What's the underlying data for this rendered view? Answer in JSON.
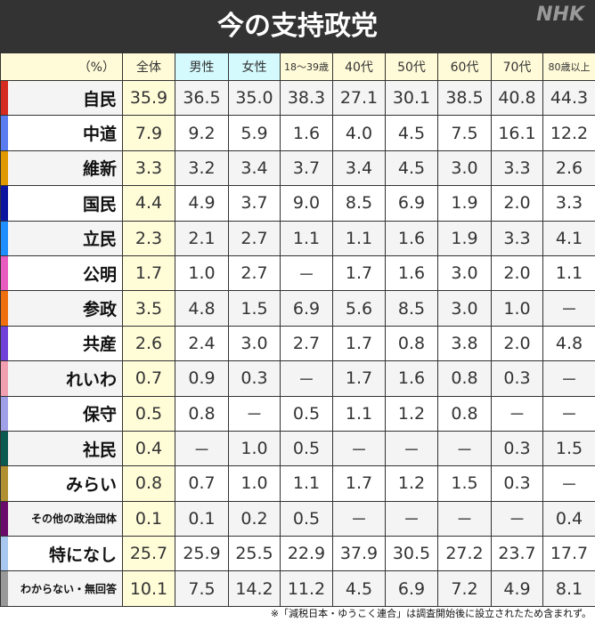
{
  "title": "今の支持政党",
  "logo": "NHK",
  "unit": "（%）",
  "columns": [
    "全体",
    "男性",
    "女性",
    "18〜39歳",
    "40代",
    "50代",
    "60代",
    "70代",
    "80歳以上"
  ],
  "rows": [
    {
      "party": "自民",
      "color": "#d42a20",
      "values": [
        "35.9",
        "36.5",
        "35.0",
        "38.3",
        "27.1",
        "30.1",
        "38.5",
        "40.8",
        "44.3"
      ]
    },
    {
      "party": "中道",
      "color": "#5a7cf0",
      "values": [
        "7.9",
        "9.2",
        "5.9",
        "1.6",
        "4.0",
        "4.5",
        "7.5",
        "16.1",
        "12.2"
      ]
    },
    {
      "party": "維新",
      "color": "#e09a00",
      "values": [
        "3.3",
        "3.2",
        "3.4",
        "3.7",
        "3.4",
        "4.5",
        "3.0",
        "3.3",
        "2.6"
      ]
    },
    {
      "party": "国民",
      "color": "#0a14a0",
      "values": [
        "4.4",
        "4.9",
        "3.7",
        "9.0",
        "8.5",
        "6.9",
        "1.9",
        "2.0",
        "3.3"
      ]
    },
    {
      "party": "立民",
      "color": "#1f8fff",
      "values": [
        "2.3",
        "2.1",
        "2.7",
        "1.1",
        "1.1",
        "1.6",
        "1.9",
        "3.3",
        "4.1"
      ]
    },
    {
      "party": "公明",
      "color": "#e85cc0",
      "values": [
        "1.7",
        "1.0",
        "2.7",
        "－",
        "1.7",
        "1.6",
        "3.0",
        "2.0",
        "1.1"
      ]
    },
    {
      "party": "参政",
      "color": "#f07010",
      "values": [
        "3.5",
        "4.8",
        "1.5",
        "6.9",
        "5.6",
        "8.5",
        "3.0",
        "1.0",
        "－"
      ]
    },
    {
      "party": "共産",
      "color": "#7040d8",
      "values": [
        "2.6",
        "2.4",
        "3.0",
        "2.7",
        "1.7",
        "0.8",
        "3.8",
        "2.0",
        "4.8"
      ]
    },
    {
      "party": "れいわ",
      "color": "#f0a0b0",
      "values": [
        "0.7",
        "0.9",
        "0.3",
        "－",
        "1.7",
        "1.6",
        "0.8",
        "0.3",
        "－"
      ]
    },
    {
      "party": "保守",
      "color": "#a0a0e8",
      "values": [
        "0.5",
        "0.8",
        "－",
        "0.5",
        "1.1",
        "1.2",
        "0.8",
        "－",
        "－"
      ]
    },
    {
      "party": "社民",
      "color": "#0a5a50",
      "values": [
        "0.4",
        "－",
        "1.0",
        "0.5",
        "－",
        "－",
        "－",
        "0.3",
        "1.5"
      ]
    },
    {
      "party": "みらい",
      "color": "#b09030",
      "values": [
        "0.8",
        "0.7",
        "1.0",
        "1.1",
        "1.7",
        "1.2",
        "1.5",
        "0.3",
        "－"
      ]
    },
    {
      "party": "その他の政治団体",
      "color": "#6a0a6a",
      "values": [
        "0.1",
        "0.1",
        "0.2",
        "0.5",
        "－",
        "－",
        "－",
        "－",
        "0.4"
      ]
    },
    {
      "party": "特になし",
      "color": "#a8c8f0",
      "values": [
        "25.7",
        "25.9",
        "25.5",
        "22.9",
        "37.9",
        "30.5",
        "27.2",
        "23.7",
        "17.7"
      ]
    },
    {
      "party": "わからない・無回答",
      "color": "#999999",
      "values": [
        "10.1",
        "7.5",
        "14.2",
        "11.2",
        "4.5",
        "6.9",
        "7.2",
        "4.9",
        "8.1"
      ]
    }
  ],
  "note": "※「減税日本・ゆうこく連合」は調査開始後に設立されたため含まれず。"
}
